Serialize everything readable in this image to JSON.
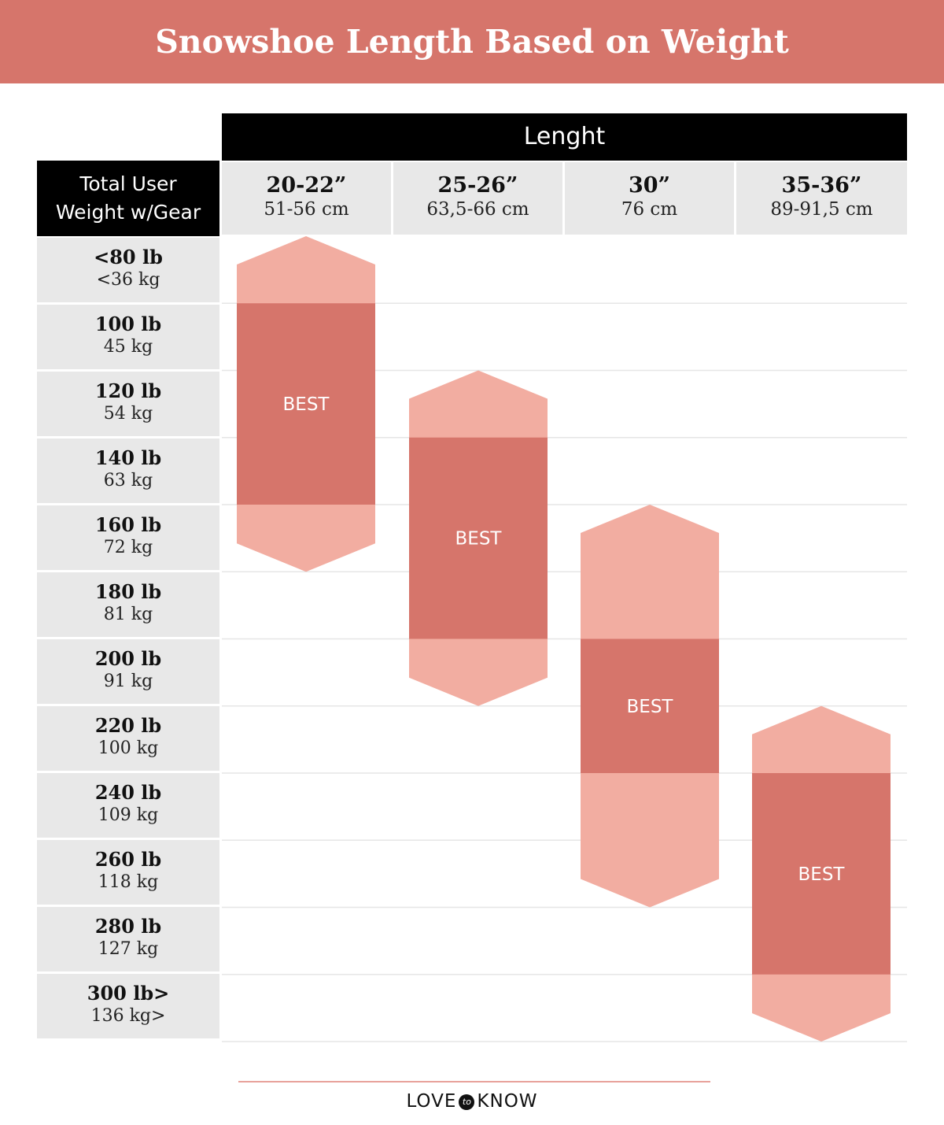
{
  "title": "Snowshoe Length Based on Weight",
  "header": {
    "length_label": "Lenght",
    "weight_label": "Total User\nWeight w/Gear"
  },
  "columns": [
    {
      "inches": "20-22”",
      "cm": "51-56 cm"
    },
    {
      "inches": "25-26”",
      "cm": "63,5-66 cm"
    },
    {
      "inches": "30”",
      "cm": "76 cm"
    },
    {
      "inches": "35-36”",
      "cm": "89-91,5 cm"
    }
  ],
  "rows": [
    {
      "lb": "<80 lb",
      "kg": "<36 kg"
    },
    {
      "lb": "100 lb",
      "kg": "45 kg"
    },
    {
      "lb": "120 lb",
      "kg": "54 kg"
    },
    {
      "lb": "140 lb",
      "kg": "63 kg"
    },
    {
      "lb": "160 lb",
      "kg": "72 kg"
    },
    {
      "lb": "180 lb",
      "kg": "81 kg"
    },
    {
      "lb": "200 lb",
      "kg": "91 kg"
    },
    {
      "lb": "220 lb",
      "kg": "100 kg"
    },
    {
      "lb": "240 lb",
      "kg": "109 kg"
    },
    {
      "lb": "260 lb",
      "kg": "118 kg"
    },
    {
      "lb": "280 lb",
      "kg": "127 kg"
    },
    {
      "lb": "300 lb>",
      "kg": "136 kg>"
    }
  ],
  "chart_data": {
    "type": "bar",
    "categories": [
      "20-22”",
      "25-26”",
      "30”",
      "35-36”"
    ],
    "y_categories": [
      "<80 lb",
      "100 lb",
      "120 lb",
      "140 lb",
      "160 lb",
      "180 lb",
      "200 lb",
      "220 lb",
      "240 lb",
      "260 lb",
      "280 lb",
      "300 lb>"
    ],
    "series": [
      {
        "name": "",
        "role": "range",
        "ranges": [
          {
            "start": "<80 lb",
            "end": "160 lb"
          },
          {
            "start": "120 lb",
            "end": "200 lb"
          },
          {
            "start": "160 lb",
            "end": "260 lb"
          },
          {
            "start": "220 lb",
            "end": "300 lb>"
          }
        ]
      },
      {
        "name": "BEST",
        "role": "best",
        "ranges": [
          {
            "start": "100 lb",
            "end": "140 lb"
          },
          {
            "start": "140 lb",
            "end": "180 lb"
          },
          {
            "start": "200 lb",
            "end": "220 lb"
          },
          {
            "start": "240 lb",
            "end": "280 lb"
          }
        ]
      }
    ],
    "bar_label": "BEST",
    "colors": {
      "range": "#f2ada1",
      "best": "#d6756b",
      "banner": "#d6756b"
    }
  },
  "footer": {
    "brand_left": "LOVE",
    "brand_mid": "to",
    "brand_right": "KNOW"
  }
}
